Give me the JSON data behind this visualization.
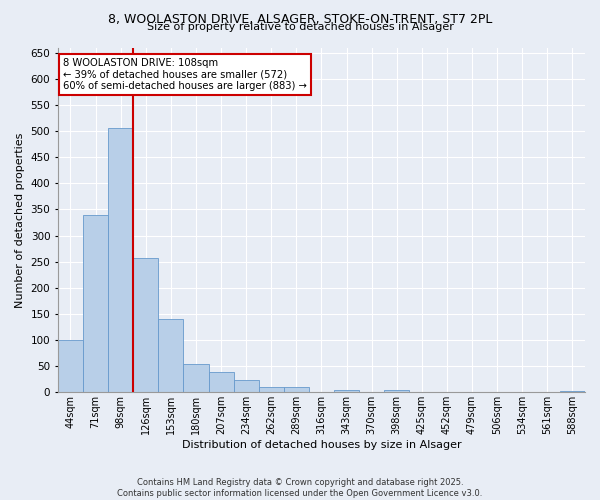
{
  "title_line1": "8, WOOLASTON DRIVE, ALSAGER, STOKE-ON-TRENT, ST7 2PL",
  "title_line2": "Size of property relative to detached houses in Alsager",
  "xlabel": "Distribution of detached houses by size in Alsager",
  "ylabel": "Number of detached properties",
  "categories": [
    "44sqm",
    "71sqm",
    "98sqm",
    "126sqm",
    "153sqm",
    "180sqm",
    "207sqm",
    "234sqm",
    "262sqm",
    "289sqm",
    "316sqm",
    "343sqm",
    "370sqm",
    "398sqm",
    "425sqm",
    "452sqm",
    "479sqm",
    "506sqm",
    "534sqm",
    "561sqm",
    "588sqm"
  ],
  "values": [
    100,
    340,
    505,
    258,
    140,
    55,
    38,
    23,
    10,
    10,
    0,
    5,
    0,
    5,
    0,
    0,
    0,
    0,
    0,
    0,
    3
  ],
  "bar_color": "#b8cfe8",
  "bar_edge_color": "#6699cc",
  "bg_color": "#e8edf5",
  "grid_color": "#ffffff",
  "vline_color": "#cc0000",
  "vline_x_index": 2,
  "annotation_text": "8 WOOLASTON DRIVE: 108sqm\n← 39% of detached houses are smaller (572)\n60% of semi-detached houses are larger (883) →",
  "annotation_box_color": "#ffffff",
  "annotation_box_edge": "#cc0000",
  "ylim": [
    0,
    660
  ],
  "yticks": [
    0,
    50,
    100,
    150,
    200,
    250,
    300,
    350,
    400,
    450,
    500,
    550,
    600,
    650
  ],
  "footnote1": "Contains HM Land Registry data © Crown copyright and database right 2025.",
  "footnote2": "Contains public sector information licensed under the Open Government Licence v3.0."
}
